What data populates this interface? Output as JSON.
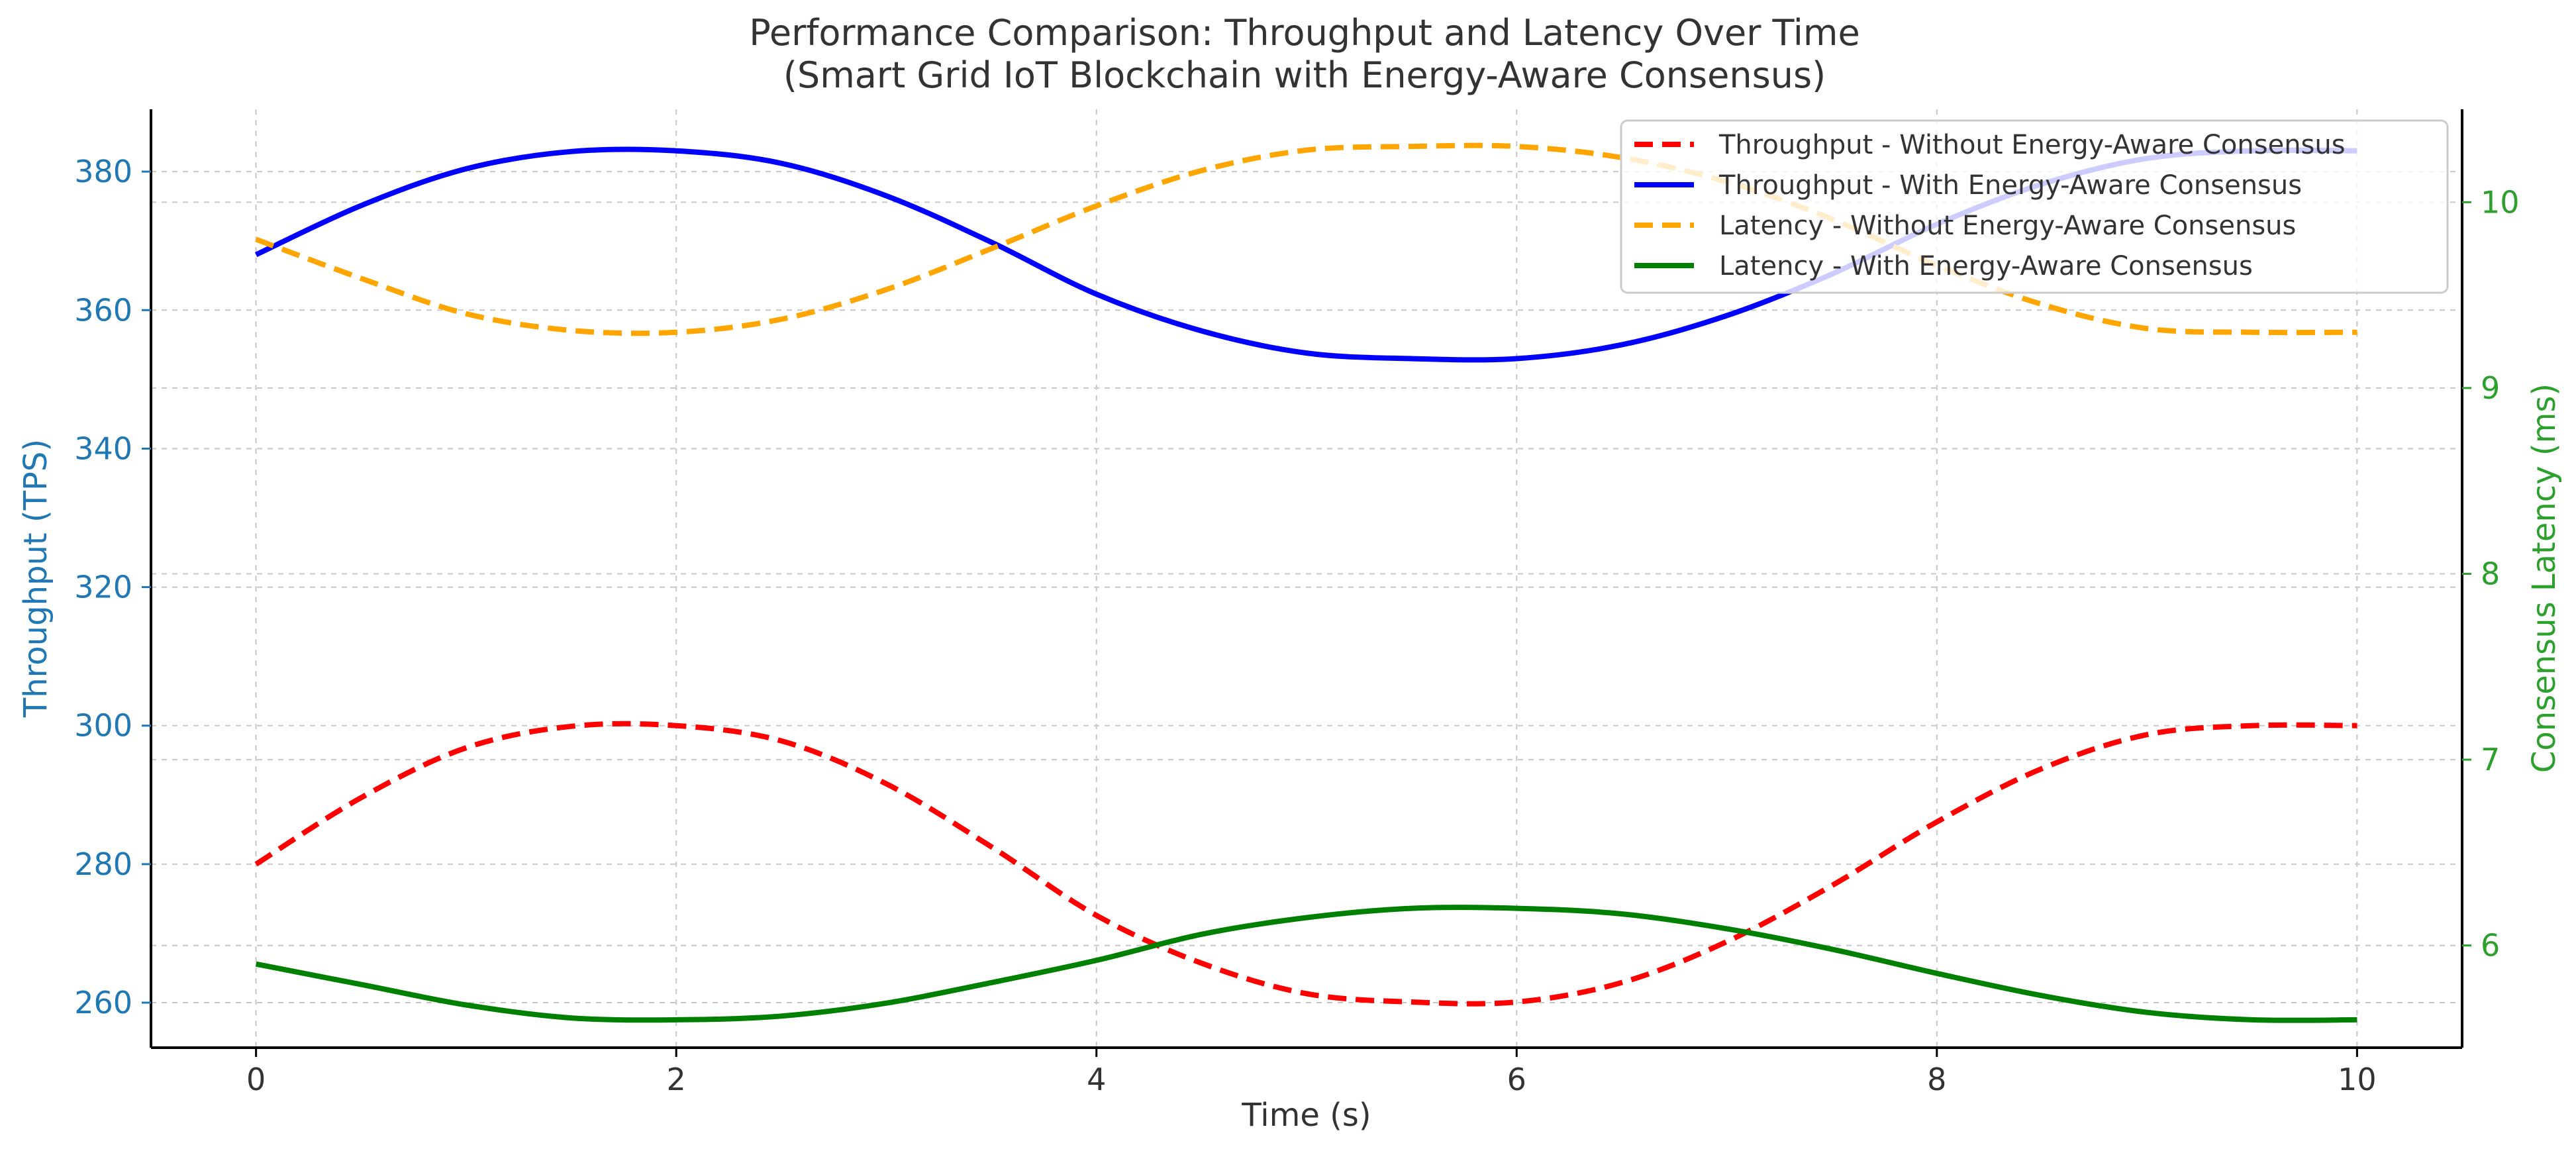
{
  "chart_data": {
    "type": "line",
    "title": "Performance Comparison: Throughput and Latency Over Time",
    "subtitle": "(Smart Grid IoT Blockchain with Energy-Aware Consensus)",
    "xlabel": "Time (s)",
    "ylabel_left": "Throughput (TPS)",
    "ylabel_right": "Consensus Latency (ms)",
    "xlim": [
      -0.5,
      10.5
    ],
    "ylim_left": [
      253.5,
      389
    ],
    "ylim_right": [
      5.45,
      10.5
    ],
    "xticks": [
      0,
      2,
      4,
      6,
      8,
      10
    ],
    "yticks_left": [
      260,
      280,
      300,
      320,
      340,
      360,
      380
    ],
    "yticks_right": [
      6,
      7,
      8,
      9,
      10
    ],
    "grid": true,
    "legend_position": "upper right",
    "x": [
      0,
      0.5,
      1,
      1.5,
      2,
      2.5,
      3,
      3.5,
      4,
      4.5,
      5,
      5.5,
      6,
      6.5,
      7,
      7.5,
      8,
      8.5,
      9,
      9.5,
      10
    ],
    "series": [
      {
        "name": "Throughput - Without Energy-Aware Consensus",
        "axis": "left",
        "color": "#ff0000",
        "dash": "dashed",
        "values": [
          280,
          289.6,
          296.8,
          299.9,
          300,
          297.8,
          291.6,
          282.5,
          272.6,
          265.7,
          261.3,
          260.1,
          260.1,
          262.9,
          268.8,
          276.9,
          286.1,
          293.8,
          298.7,
          300.0,
          300.0
        ]
      },
      {
        "name": "Throughput - With Energy-Aware Consensus",
        "axis": "left",
        "color": "#0000ff",
        "dash": "solid",
        "values": [
          368,
          375.1,
          380.4,
          382.9,
          383,
          381.2,
          376.5,
          369.8,
          362.3,
          357.0,
          353.8,
          353.0,
          353.0,
          355.0,
          359.2,
          365.2,
          372.4,
          378.2,
          381.9,
          383.0,
          383.0
        ]
      },
      {
        "name": "Latency - Without Energy-Aware Consensus",
        "axis": "right",
        "color": "#ffa500",
        "dash": "dashed",
        "values": [
          9.8,
          9.59,
          9.4,
          9.31,
          9.3,
          9.37,
          9.53,
          9.75,
          9.98,
          10.17,
          10.28,
          10.3,
          10.3,
          10.24,
          10.11,
          9.91,
          9.66,
          9.45,
          9.32,
          9.3,
          9.3
        ]
      },
      {
        "name": "Latency - With Energy-Aware Consensus",
        "axis": "right",
        "color": "#008000",
        "dash": "solid",
        "values": [
          5.9,
          5.79,
          5.68,
          5.61,
          5.6,
          5.62,
          5.69,
          5.8,
          5.92,
          6.06,
          6.15,
          6.2,
          6.2,
          6.17,
          6.09,
          5.98,
          5.85,
          5.73,
          5.64,
          5.6,
          5.6
        ]
      }
    ]
  }
}
